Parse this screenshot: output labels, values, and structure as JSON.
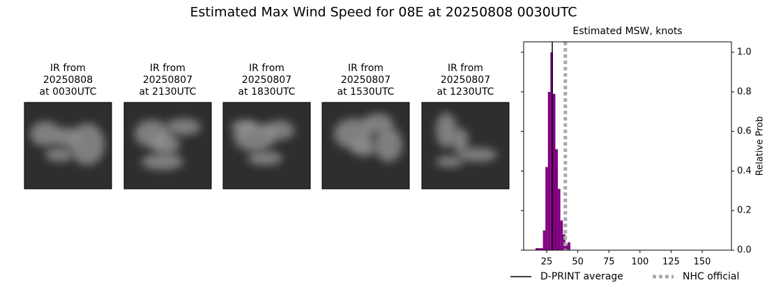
{
  "title": "Estimated Max Wind Speed for 08E at 20250808 0030UTC",
  "images": [
    {
      "title": [
        "IR from",
        "20250808",
        "at 0030UTC"
      ]
    },
    {
      "title": [
        "IR from",
        "20250807",
        "at 2130UTC"
      ]
    },
    {
      "title": [
        "IR from",
        "20250807",
        "at 1830UTC"
      ]
    },
    {
      "title": [
        "IR from",
        "20250807",
        "at 1530UTC"
      ]
    },
    {
      "title": [
        "IR from",
        "20250807",
        "at 1230UTC"
      ]
    }
  ],
  "chart_data": {
    "type": "histogram",
    "title": "Estimated MSW, knots",
    "ylabel": "Relative Prob",
    "bins": [
      16,
      18,
      20,
      22,
      24,
      26,
      28,
      30,
      32,
      34,
      36,
      38,
      40,
      42,
      44
    ],
    "values": [
      0.01,
      0.01,
      0.01,
      0.1,
      0.42,
      0.8,
      1.0,
      0.79,
      0.51,
      0.31,
      0.15,
      0.08,
      0.03,
      0.04
    ],
    "color": "#800080",
    "xlim": [
      6.5,
      173.5
    ],
    "xticks": [
      25,
      50,
      75,
      100,
      125,
      150
    ],
    "ylim": [
      0,
      1.053
    ],
    "yticks": [
      {
        "value": 0,
        "label": "0.0"
      },
      0.2,
      0.4,
      0.6,
      0.8,
      {
        "value": 1,
        "label": "1.0"
      }
    ],
    "lines": [
      {
        "name": "D-PRINT average",
        "value": 29.5,
        "color": "#000000",
        "style": "solid"
      },
      {
        "name": "NHC official",
        "value": 40,
        "color": "#aaaaaa",
        "style": "dotted"
      }
    ]
  }
}
